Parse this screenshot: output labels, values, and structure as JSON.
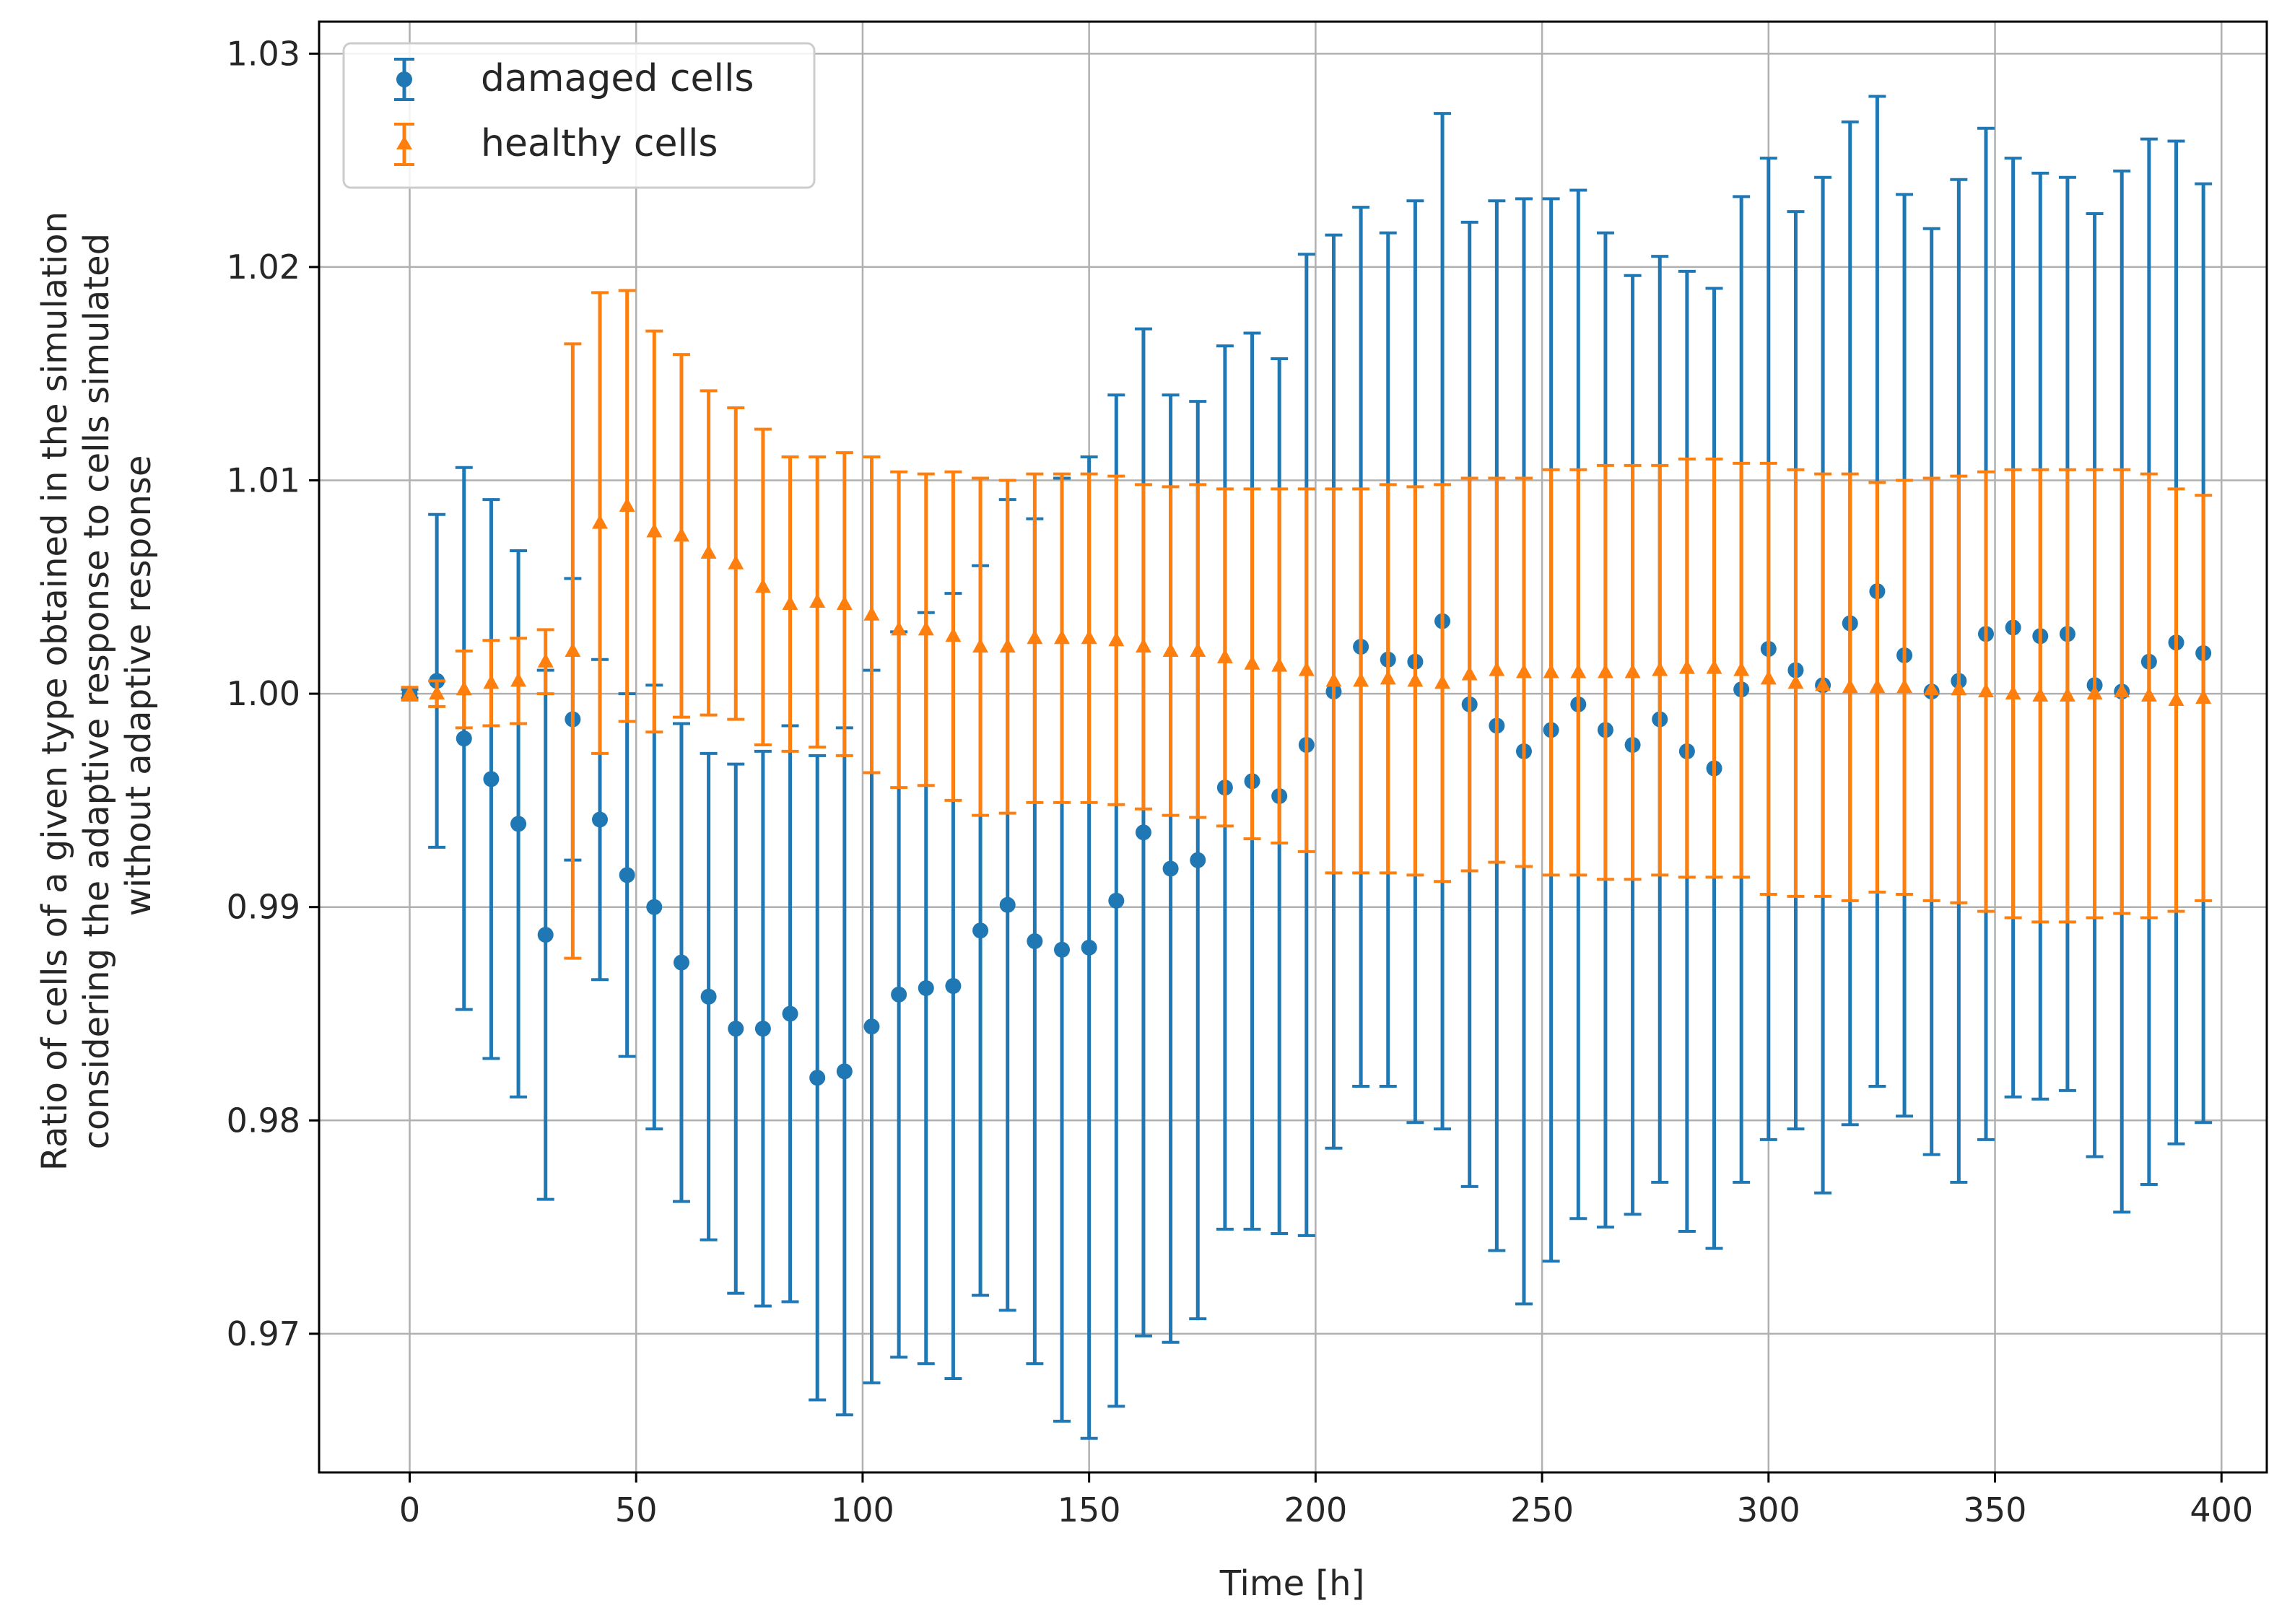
{
  "chart_data": {
    "type": "errorbar",
    "title": "",
    "xlabel": "Time [h]",
    "ylabel_lines": [
      "Ratio of cells of a given type obtained in the simulation",
      "considering the adaptive response to cells simulated",
      "without adaptive response"
    ],
    "xlim": [
      -20,
      410
    ],
    "ylim": [
      0.9635,
      1.0315
    ],
    "xticks": [
      0,
      50,
      100,
      150,
      200,
      250,
      300,
      350,
      400
    ],
    "xtick_labels": [
      "0",
      "50",
      "100",
      "150",
      "200",
      "250",
      "300",
      "350",
      "400"
    ],
    "yticks": [
      0.97,
      0.98,
      0.99,
      1.0,
      1.01,
      1.02,
      1.03
    ],
    "ytick_labels": [
      "0.97",
      "0.98",
      "0.99",
      "1.00",
      "1.01",
      "1.02",
      "1.03"
    ],
    "grid": true,
    "legend_position": "top-left",
    "series": [
      {
        "name": "damaged cells",
        "marker": "circle",
        "color": "#1f77b4",
        "x": [
          0,
          6,
          12,
          18,
          24,
          30,
          36,
          42,
          48,
          54,
          60,
          66,
          72,
          78,
          84,
          90,
          96,
          102,
          108,
          114,
          120,
          126,
          132,
          138,
          144,
          150,
          156,
          162,
          168,
          174,
          180,
          186,
          192,
          198,
          204,
          210,
          216,
          222,
          228,
          234,
          240,
          246,
          252,
          258,
          264,
          270,
          276,
          282,
          288,
          294,
          300,
          306,
          312,
          318,
          324,
          330,
          336,
          342,
          348,
          354,
          360,
          366,
          372,
          378,
          384,
          390,
          396
        ],
        "y": [
          1.0,
          1.0006,
          0.9979,
          0.996,
          0.9939,
          0.9887,
          0.9988,
          0.9941,
          0.9915,
          0.99,
          0.9874,
          0.9858,
          0.9843,
          0.9843,
          0.985,
          0.982,
          0.9823,
          0.9844,
          0.9859,
          0.9862,
          0.9863,
          0.9889,
          0.9901,
          0.9884,
          0.988,
          0.9881,
          0.9903,
          0.9935,
          0.9918,
          0.9922,
          0.9956,
          0.9959,
          0.9952,
          0.9976,
          1.0001,
          1.0022,
          1.0016,
          1.0015,
          1.0034,
          0.9995,
          0.9985,
          0.9973,
          0.9983,
          0.9995,
          0.9983,
          0.9976,
          0.9988,
          0.9973,
          0.9965,
          1.0002,
          1.0021,
          1.0011,
          1.0004,
          1.0033,
          1.0048,
          1.0018,
          1.0001,
          1.0006,
          1.0028,
          1.0031,
          1.0027,
          1.0028,
          1.0004,
          1.0001,
          1.0015,
          1.0024,
          1.0019
        ],
        "err": [
          0.0002,
          0.0078,
          0.0127,
          0.0131,
          0.0128,
          0.0124,
          0.0066,
          0.0075,
          0.0085,
          0.0104,
          0.0112,
          0.0114,
          0.0124,
          0.013,
          0.0135,
          0.0151,
          0.0161,
          0.0167,
          0.017,
          0.0176,
          0.0184,
          0.0171,
          0.019,
          0.0198,
          0.0221,
          0.023,
          0.0237,
          0.0236,
          0.0222,
          0.0215,
          0.0207,
          0.021,
          0.0205,
          0.023,
          0.0214,
          0.0206,
          0.02,
          0.0216,
          0.0238,
          0.0226,
          0.0246,
          0.0259,
          0.0249,
          0.0241,
          0.0233,
          0.022,
          0.0217,
          0.0225,
          0.0225,
          0.0231,
          0.023,
          0.0215,
          0.0238,
          0.0235,
          0.0232,
          0.0216,
          0.0217,
          0.0235,
          0.0237,
          0.022,
          0.0217,
          0.0214,
          0.0221,
          0.0244,
          0.0245,
          0.0235,
          0.022
        ]
      },
      {
        "name": "healthy cells",
        "marker": "triangle",
        "color": "#ff7f0e",
        "x": [
          0,
          6,
          12,
          18,
          24,
          30,
          36,
          42,
          48,
          54,
          60,
          66,
          72,
          78,
          84,
          90,
          96,
          102,
          108,
          114,
          120,
          126,
          132,
          138,
          144,
          150,
          156,
          162,
          168,
          174,
          180,
          186,
          192,
          198,
          204,
          210,
          216,
          222,
          228,
          234,
          240,
          246,
          252,
          258,
          264,
          270,
          276,
          282,
          288,
          294,
          300,
          306,
          312,
          318,
          324,
          330,
          336,
          342,
          348,
          354,
          360,
          366,
          372,
          378,
          384,
          390,
          396
        ],
        "y": [
          1.0,
          1.0,
          1.0002,
          1.0005,
          1.0006,
          1.0015,
          1.002,
          1.008,
          1.0088,
          1.0076,
          1.0074,
          1.0066,
          1.0061,
          1.005,
          1.0042,
          1.0043,
          1.0042,
          1.0037,
          1.003,
          1.003,
          1.0027,
          1.0022,
          1.0022,
          1.0026,
          1.0026,
          1.0026,
          1.0025,
          1.0022,
          1.002,
          1.002,
          1.0017,
          1.0014,
          1.0013,
          1.0011,
          1.0006,
          1.0006,
          1.0007,
          1.0006,
          1.0005,
          1.0009,
          1.0011,
          1.001,
          1.001,
          1.001,
          1.001,
          1.001,
          1.0011,
          1.0012,
          1.0012,
          1.0011,
          1.0007,
          1.0005,
          1.0004,
          1.0003,
          1.0003,
          1.0003,
          1.0002,
          1.0002,
          1.0001,
          1.0,
          0.9999,
          0.9999,
          1.0,
          1.0001,
          0.9999,
          0.9997,
          0.9998
        ],
        "err": [
          0.0003,
          0.0006,
          0.0018,
          0.002,
          0.002,
          0.0015,
          0.0144,
          0.0108,
          0.0101,
          0.0094,
          0.0085,
          0.0076,
          0.0073,
          0.0074,
          0.0069,
          0.0068,
          0.0071,
          0.0074,
          0.0074,
          0.0073,
          0.0077,
          0.0079,
          0.0078,
          0.0077,
          0.0077,
          0.0077,
          0.0077,
          0.0076,
          0.0077,
          0.0078,
          0.0079,
          0.0082,
          0.0083,
          0.0085,
          0.009,
          0.009,
          0.0091,
          0.0091,
          0.0093,
          0.0092,
          0.009,
          0.0091,
          0.0095,
          0.0095,
          0.0097,
          0.0097,
          0.0096,
          0.0098,
          0.0098,
          0.0097,
          0.0101,
          0.01,
          0.0099,
          0.01,
          0.0096,
          0.0097,
          0.0099,
          0.01,
          0.0103,
          0.0105,
          0.0106,
          0.0106,
          0.0105,
          0.0104,
          0.0104,
          0.0099,
          0.0095
        ]
      }
    ]
  }
}
